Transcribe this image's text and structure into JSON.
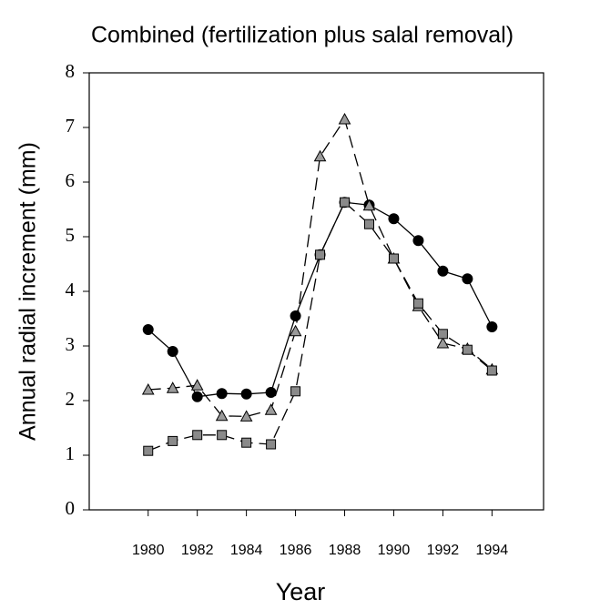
{
  "chart_data": {
    "type": "line",
    "title": "Combined (fertilization plus salal removal)",
    "xlabel": "Year",
    "ylabel": "Annual radial increment (mm)",
    "x": [
      1980,
      1981,
      1982,
      1983,
      1984,
      1985,
      1986,
      1987,
      1988,
      1989,
      1990,
      1991,
      1992,
      1993,
      1994
    ],
    "series": [
      {
        "color": "#000000",
        "marker": "circle",
        "dash": false,
        "values": [
          3.3,
          2.9,
          2.07,
          2.13,
          2.12,
          2.15,
          3.55,
          4.67,
          5.63,
          5.58,
          5.33,
          4.93,
          4.37,
          4.23,
          3.35
        ]
      },
      {
        "color": "#9a9a9a",
        "marker": "triangle",
        "dash": true,
        "values": [
          2.2,
          2.23,
          2.28,
          1.72,
          1.71,
          1.83,
          3.27,
          6.47,
          7.15,
          5.57,
          4.6,
          3.73,
          3.05,
          2.95,
          2.57
        ]
      },
      {
        "color": "#8a8a8a",
        "marker": "square",
        "dash": true,
        "values": [
          1.08,
          1.26,
          1.37,
          1.37,
          1.23,
          1.2,
          2.17,
          4.67,
          5.63,
          5.23,
          4.6,
          3.78,
          3.22,
          2.93,
          2.55
        ]
      }
    ],
    "xlim": [
      1977.6,
      1996.1
    ],
    "xticks": [
      1980,
      1982,
      1984,
      1986,
      1988,
      1990,
      1992,
      1994
    ],
    "ylim": [
      0,
      8
    ],
    "yticks": [
      0,
      1,
      2,
      3,
      4,
      5,
      6,
      7,
      8
    ]
  }
}
